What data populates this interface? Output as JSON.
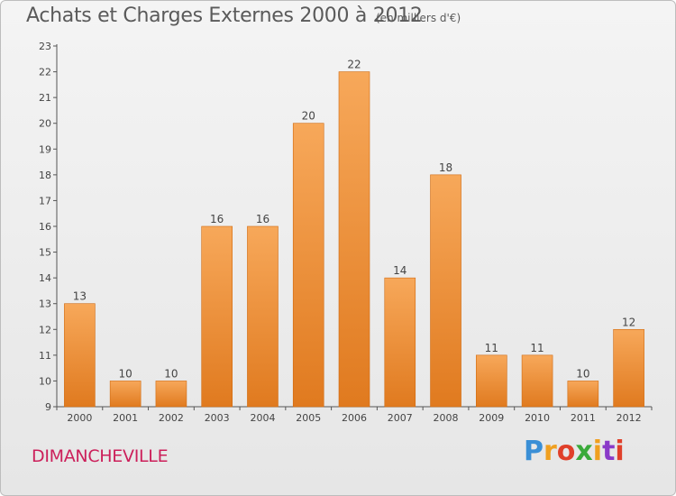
{
  "header": {
    "title": "Achats et Charges Externes 2000 à 2012",
    "unit": "(en milliers d'€)"
  },
  "footer": {
    "city": "DIMANCHEVILLE",
    "logo_text": "Proxiti",
    "logo_colors": [
      "#3a8fd6",
      "#f0a020",
      "#e0402a",
      "#3aaa3a",
      "#f0a020",
      "#8a3ac8",
      "#e0402a"
    ]
  },
  "colors": {
    "bar_top": "#f7a85a",
    "bar_bottom": "#e07a1f",
    "bar_edge": "#d06a10",
    "axis": "#555555",
    "grid": "#cccccc"
  },
  "chart_data": {
    "type": "bar",
    "title": "Achats et Charges Externes 2000 à 2012",
    "subtitle": "(en milliers d'€)",
    "categories": [
      "2000",
      "2001",
      "2002",
      "2003",
      "2004",
      "2005",
      "2006",
      "2007",
      "2008",
      "2009",
      "2010",
      "2011",
      "2012"
    ],
    "values": [
      13,
      10,
      10,
      16,
      16,
      20,
      22,
      14,
      18,
      11,
      11,
      10,
      12
    ],
    "ylim": [
      9,
      23
    ],
    "yticks": [
      9,
      10,
      11,
      12,
      13,
      14,
      15,
      16,
      17,
      18,
      19,
      20,
      21,
      22,
      23
    ],
    "grid": false,
    "xlabel": "",
    "ylabel": ""
  }
}
